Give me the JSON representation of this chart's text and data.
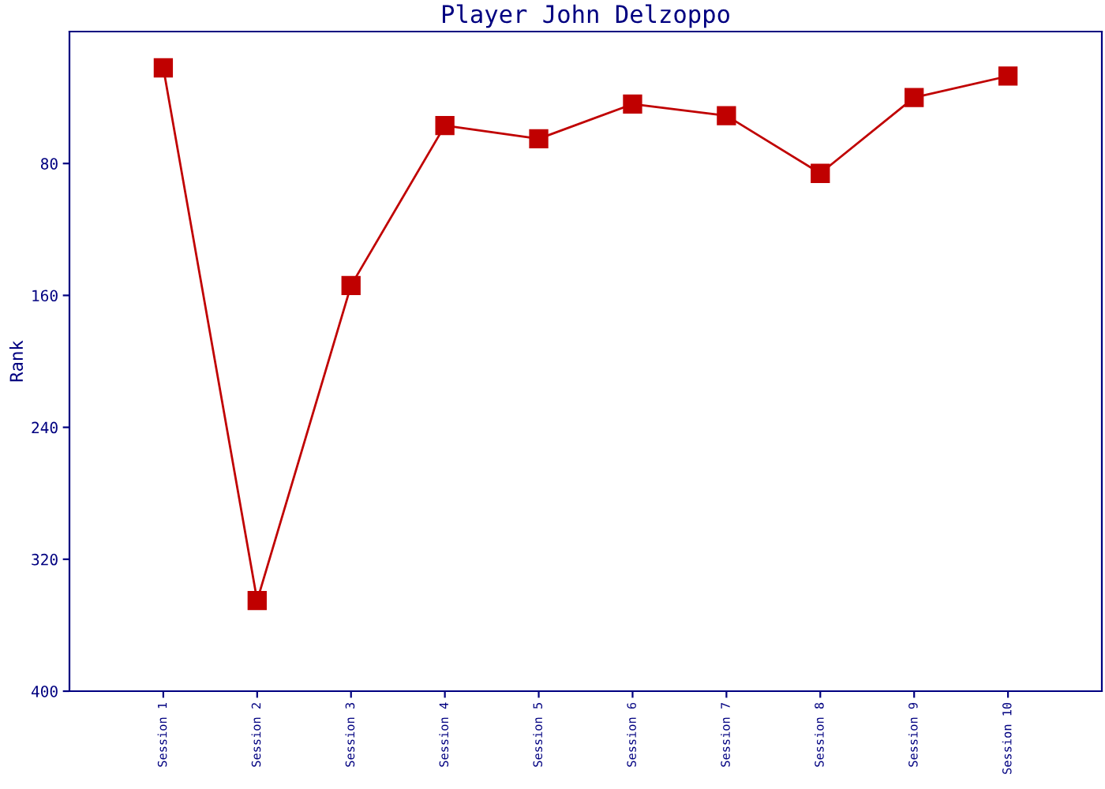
{
  "chart_data": {
    "type": "line",
    "title": "Player John Delzoppo",
    "ylabel": "Rank",
    "categories": [
      "Session 1",
      "Session 2",
      "Session 3",
      "Session 4",
      "Session 5",
      "Session 6",
      "Session 7",
      "Session 8",
      "Session 9",
      "Session 10"
    ],
    "series": [
      {
        "color": "#c00000",
        "values": [
          22,
          345,
          154,
          57,
          65,
          44,
          51,
          86,
          40,
          27
        ]
      }
    ],
    "ylim": [
      400,
      0
    ],
    "yticks": [
      80,
      160,
      240,
      320,
      400
    ],
    "marker": "square",
    "line_style": "solid",
    "grid": false,
    "legend": false
  }
}
